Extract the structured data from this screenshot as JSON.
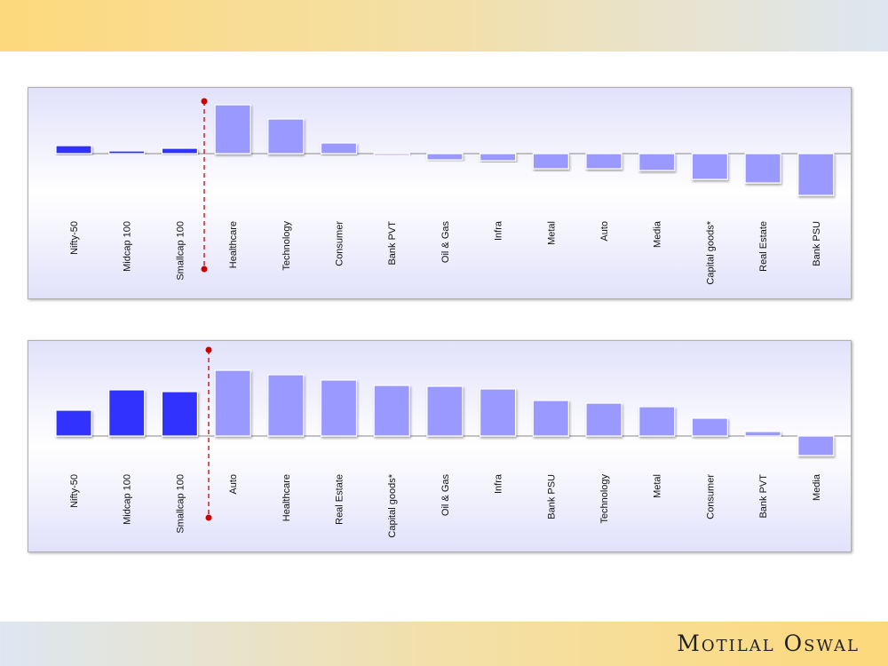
{
  "brand": {
    "logo_text": "Motilal Oswal"
  },
  "colors": {
    "index_bar": "#3333ff",
    "sector_bar": "#9999ff",
    "divider": "#cc0000"
  },
  "chart_data": [
    {
      "type": "bar",
      "title": "",
      "xlabel": "",
      "ylabel": "",
      "units": "relative (no axis scale shown)",
      "categories": [
        "Nifty-50",
        "Midcap 100",
        "Smallcap 100",
        "Healthcare",
        "Technology",
        "Consumer",
        "Bank PVT",
        "Oil & Gas",
        "Infra",
        "Metal",
        "Auto",
        "Media",
        "Capital goods*",
        "Real Estate",
        "Bank PSU"
      ],
      "values": [
        9,
        3,
        6,
        55,
        39,
        12,
        -2,
        -7,
        -8,
        -17,
        -17,
        -19,
        -29,
        -33,
        -47
      ],
      "index_count": 3,
      "ylim": [
        -60,
        65
      ],
      "grid": false
    },
    {
      "type": "bar",
      "title": "",
      "xlabel": "",
      "ylabel": "",
      "units": "relative (no axis scale shown)",
      "categories": [
        "Nifty-50",
        "Midcap 100",
        "Smallcap 100",
        "Auto",
        "Healthcare",
        "Real Estate",
        "Capital goods*",
        "Oil & Gas",
        "Infra",
        "Bank PSU",
        "Technology",
        "Metal",
        "Consumer",
        "Bank PVT",
        "Media"
      ],
      "values": [
        29,
        52,
        50,
        74,
        69,
        63,
        57,
        56,
        53,
        40,
        37,
        33,
        20,
        5,
        -22
      ],
      "index_count": 3,
      "ylim": [
        -30,
        95
      ],
      "grid": false
    }
  ]
}
